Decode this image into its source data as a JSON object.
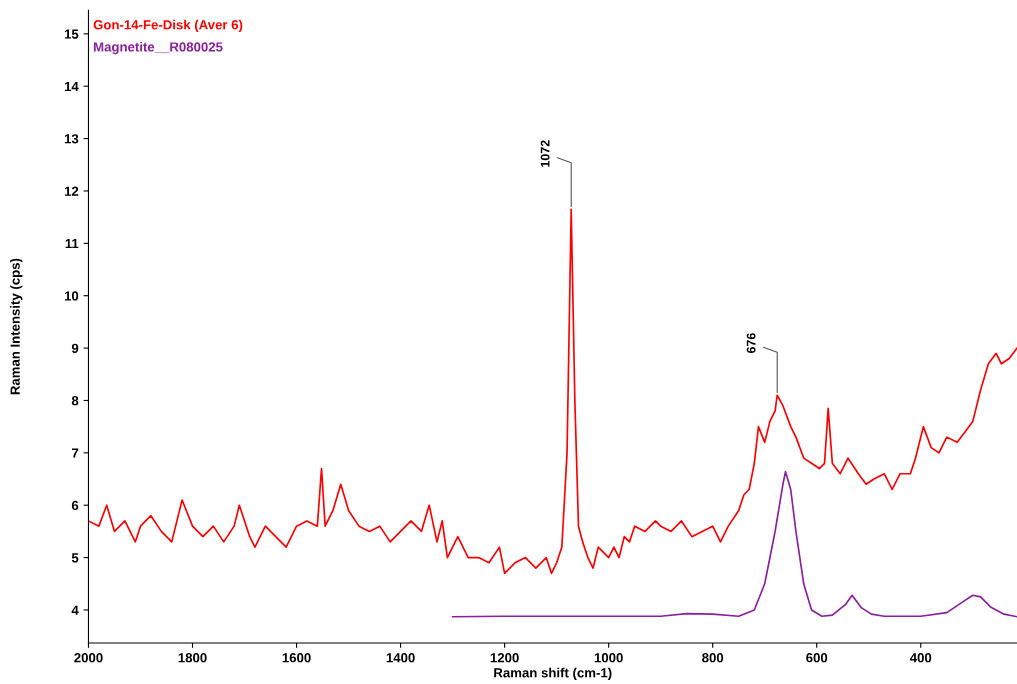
{
  "chart_data": {
    "type": "line",
    "xlabel": "Raman shift (cm-1)",
    "ylabel": "Raman Intensity (cps)",
    "xlim": [
      2000,
      215
    ],
    "ylim": [
      3.37,
      15.45
    ],
    "xticks": [
      2000,
      1800,
      1600,
      1400,
      1200,
      1000,
      800,
      600,
      400
    ],
    "yticks": [
      4,
      5,
      6,
      7,
      8,
      9,
      10,
      11,
      12,
      13,
      14,
      15
    ],
    "grid": false,
    "legend": false,
    "marker": "none",
    "line_style": "solid",
    "series": [
      {
        "name": "Gon-14-Fe-Disk (Aver 6)",
        "color": "#ff0000",
        "x": [
          2000,
          1980,
          1965,
          1950,
          1930,
          1910,
          1900,
          1880,
          1860,
          1840,
          1820,
          1800,
          1780,
          1760,
          1740,
          1720,
          1710,
          1690,
          1680,
          1660,
          1640,
          1620,
          1600,
          1580,
          1560,
          1552,
          1545,
          1530,
          1515,
          1500,
          1480,
          1460,
          1440,
          1420,
          1400,
          1380,
          1360,
          1345,
          1330,
          1320,
          1310,
          1300,
          1290,
          1270,
          1250,
          1230,
          1210,
          1200,
          1180,
          1160,
          1140,
          1120,
          1110,
          1100,
          1090,
          1080,
          1072,
          1065,
          1058,
          1050,
          1040,
          1030,
          1020,
          1000,
          990,
          980,
          970,
          960,
          950,
          930,
          910,
          900,
          880,
          860,
          840,
          820,
          800,
          785,
          770,
          750,
          740,
          730,
          720,
          712,
          700,
          690,
          680,
          676,
          665,
          650,
          640,
          625,
          610,
          595,
          585,
          578,
          570,
          555,
          540,
          520,
          505,
          490,
          470,
          455,
          440,
          420,
          410,
          395,
          380,
          365,
          350,
          330,
          315,
          300,
          285,
          270,
          255,
          245,
          230,
          215
        ],
        "values": [
          5.7,
          5.6,
          6.0,
          5.5,
          5.7,
          5.3,
          5.6,
          5.8,
          5.5,
          5.3,
          6.1,
          5.6,
          5.4,
          5.6,
          5.3,
          5.6,
          6.0,
          5.4,
          5.2,
          5.6,
          5.4,
          5.2,
          5.6,
          5.7,
          5.6,
          6.7,
          5.6,
          5.9,
          6.4,
          5.9,
          5.6,
          5.5,
          5.6,
          5.3,
          5.5,
          5.7,
          5.5,
          6.0,
          5.3,
          5.7,
          5.0,
          5.2,
          5.4,
          5.0,
          5.0,
          4.9,
          5.2,
          4.7,
          4.9,
          5.0,
          4.8,
          5.0,
          4.7,
          4.9,
          5.2,
          7.0,
          11.65,
          8.0,
          5.6,
          5.3,
          5.0,
          4.8,
          5.2,
          5.0,
          5.2,
          5.0,
          5.4,
          5.3,
          5.6,
          5.5,
          5.7,
          5.6,
          5.5,
          5.7,
          5.4,
          5.5,
          5.6,
          5.3,
          5.6,
          5.9,
          6.2,
          6.3,
          6.8,
          7.5,
          7.2,
          7.6,
          7.8,
          8.1,
          7.9,
          7.5,
          7.3,
          6.9,
          6.8,
          6.7,
          6.8,
          7.85,
          6.8,
          6.6,
          6.9,
          6.6,
          6.4,
          6.5,
          6.6,
          6.3,
          6.6,
          6.6,
          6.9,
          7.5,
          7.1,
          7.0,
          7.3,
          7.2,
          7.4,
          7.6,
          8.2,
          8.7,
          8.9,
          8.7,
          8.8,
          9.0
        ]
      },
      {
        "name": "Magnetite__R080025",
        "color": "#8b1fa0",
        "x": [
          1300,
          1200,
          1100,
          1000,
          900,
          850,
          800,
          750,
          720,
          700,
          680,
          665,
          660,
          650,
          640,
          625,
          610,
          590,
          570,
          545,
          532,
          515,
          495,
          470,
          400,
          350,
          320,
          300,
          285,
          265,
          240,
          215
        ],
        "values": [
          3.87,
          3.88,
          3.88,
          3.88,
          3.88,
          3.93,
          3.92,
          3.88,
          4.0,
          4.5,
          5.5,
          6.4,
          6.64,
          6.3,
          5.5,
          4.5,
          4.0,
          3.88,
          3.9,
          4.1,
          4.28,
          4.05,
          3.92,
          3.88,
          3.88,
          3.95,
          4.15,
          4.28,
          4.25,
          4.05,
          3.92,
          3.87
        ]
      }
    ],
    "annotations": [
      {
        "text": "1072",
        "x": 1072,
        "y": 11.65
      },
      {
        "text": "676",
        "x": 676,
        "y": 8.1
      }
    ]
  }
}
